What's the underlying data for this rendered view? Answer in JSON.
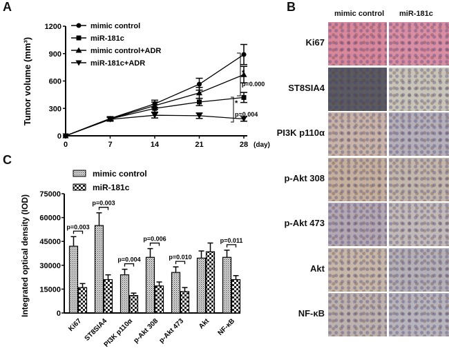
{
  "panel_labels": {
    "a": "A",
    "b": "B",
    "c": "C"
  },
  "chart_data": [
    {
      "type": "line",
      "panel": "A",
      "ylabel": "Tumor volume (mm³)",
      "xlabel": "(day)",
      "x": [
        0,
        7,
        14,
        21,
        28
      ],
      "xticks": [
        "0",
        "7",
        "14",
        "21",
        "28"
      ],
      "ylim": [
        0,
        1200
      ],
      "yticks": [
        "0",
        "300",
        "600",
        "900",
        "1200"
      ],
      "legend_position": "top-left",
      "series": [
        {
          "name": "mimic control",
          "marker": "circle",
          "values": [
            0,
            190,
            350,
            565,
            890
          ],
          "errors": [
            0,
            20,
            40,
            65,
            110
          ]
        },
        {
          "name": "miR-181c",
          "marker": "square",
          "values": [
            0,
            185,
            300,
            370,
            420
          ],
          "errors": [
            0,
            20,
            40,
            40,
            55
          ]
        },
        {
          "name": "mimic control+ADR",
          "marker": "triangle-up",
          "values": [
            0,
            185,
            330,
            470,
            670
          ],
          "errors": [
            0,
            20,
            40,
            60,
            90
          ]
        },
        {
          "name": "miR-181c+ADR",
          "marker": "triangle-down",
          "values": [
            0,
            180,
            225,
            220,
            185
          ],
          "errors": [
            0,
            20,
            30,
            30,
            25
          ]
        }
      ],
      "annotations": [
        {
          "star": "*",
          "text": "p=0.000"
        },
        {
          "star": "*",
          "text": "p=0.004"
        }
      ]
    },
    {
      "type": "bar",
      "panel": "C",
      "ylabel": "Integrated optical density (IOD)",
      "ylim": [
        0,
        75000
      ],
      "yticks": [
        "0",
        "15000",
        "30000",
        "45000",
        "60000",
        "75000"
      ],
      "categories": [
        "Ki67",
        "ST8SIA4",
        "PI3K p110α",
        "p-Akt 308",
        "p-Akt 473",
        "Akt",
        "NF-κB"
      ],
      "legend_position": "top-left",
      "series": [
        {
          "name": "mimic control",
          "values": [
            42000,
            55000,
            24000,
            35000,
            25500,
            34500,
            35000
          ],
          "errors": [
            6000,
            8000,
            3500,
            5500,
            3500,
            4500,
            4500
          ]
        },
        {
          "name": "miR-181c",
          "values": [
            16000,
            21000,
            11000,
            17000,
            13500,
            38500,
            21000
          ],
          "errors": [
            2500,
            3000,
            1500,
            2500,
            2500,
            5500,
            2500
          ]
        }
      ],
      "pvalues": [
        "p=0.003",
        "p=0.003",
        "p=0.004",
        "p=0.006",
        "p=0.010",
        "",
        "p=0.011"
      ]
    }
  ],
  "panel_b": {
    "columns": [
      "mimic control",
      "miR-181c"
    ],
    "rows": [
      {
        "label": "Ki67",
        "colors": [
          "#d9889c",
          "#d98ea4"
        ]
      },
      {
        "label": "ST8SIA4",
        "colors": [
          "#5a5a60",
          "#c8c4b8"
        ]
      },
      {
        "label": "PI3K p110α",
        "colors": [
          "#c7b3a8",
          "#b4afb8"
        ]
      },
      {
        "label": "p-Akt 308",
        "colors": [
          "#c5b09e",
          "#c3b7ac"
        ]
      },
      {
        "label": "p-Akt 473",
        "colors": [
          "#b3a7b2",
          "#c2bab8"
        ]
      },
      {
        "label": "Akt",
        "colors": [
          "#c6b7a9",
          "#b5b0b6"
        ]
      },
      {
        "label": "NF-κB",
        "colors": [
          "#bdb2ad",
          "#b8b4bb"
        ]
      }
    ]
  }
}
